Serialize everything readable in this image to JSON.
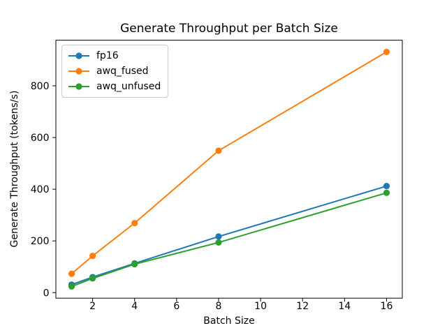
{
  "chart_data": {
    "type": "line",
    "title": "Generate Throughput per Batch Size",
    "xlabel": "Batch Size",
    "ylabel": "Generate Throughput (tokens/s)",
    "x": [
      1,
      2,
      4,
      8,
      16
    ],
    "series": [
      {
        "name": "fp16",
        "color": "#1f77b4",
        "values": [
          31,
          60,
          113,
          217,
          412
        ]
      },
      {
        "name": "awq_fused",
        "color": "#ff7f0e",
        "values": [
          73,
          142,
          269,
          549,
          931
        ]
      },
      {
        "name": "awq_unfused",
        "color": "#2ca02c",
        "values": [
          24,
          55,
          110,
          194,
          386
        ]
      }
    ],
    "xticks": [
      2,
      4,
      6,
      8,
      10,
      12,
      14,
      16
    ],
    "yticks": [
      0,
      200,
      400,
      600,
      800
    ],
    "xlim": [
      0.25,
      16.75
    ],
    "ylim": [
      -21.4,
      976.4
    ],
    "grid": false,
    "marker": "circle",
    "legend_position": "upper left",
    "axis_color": "#000000",
    "background_color": "#ffffff"
  }
}
